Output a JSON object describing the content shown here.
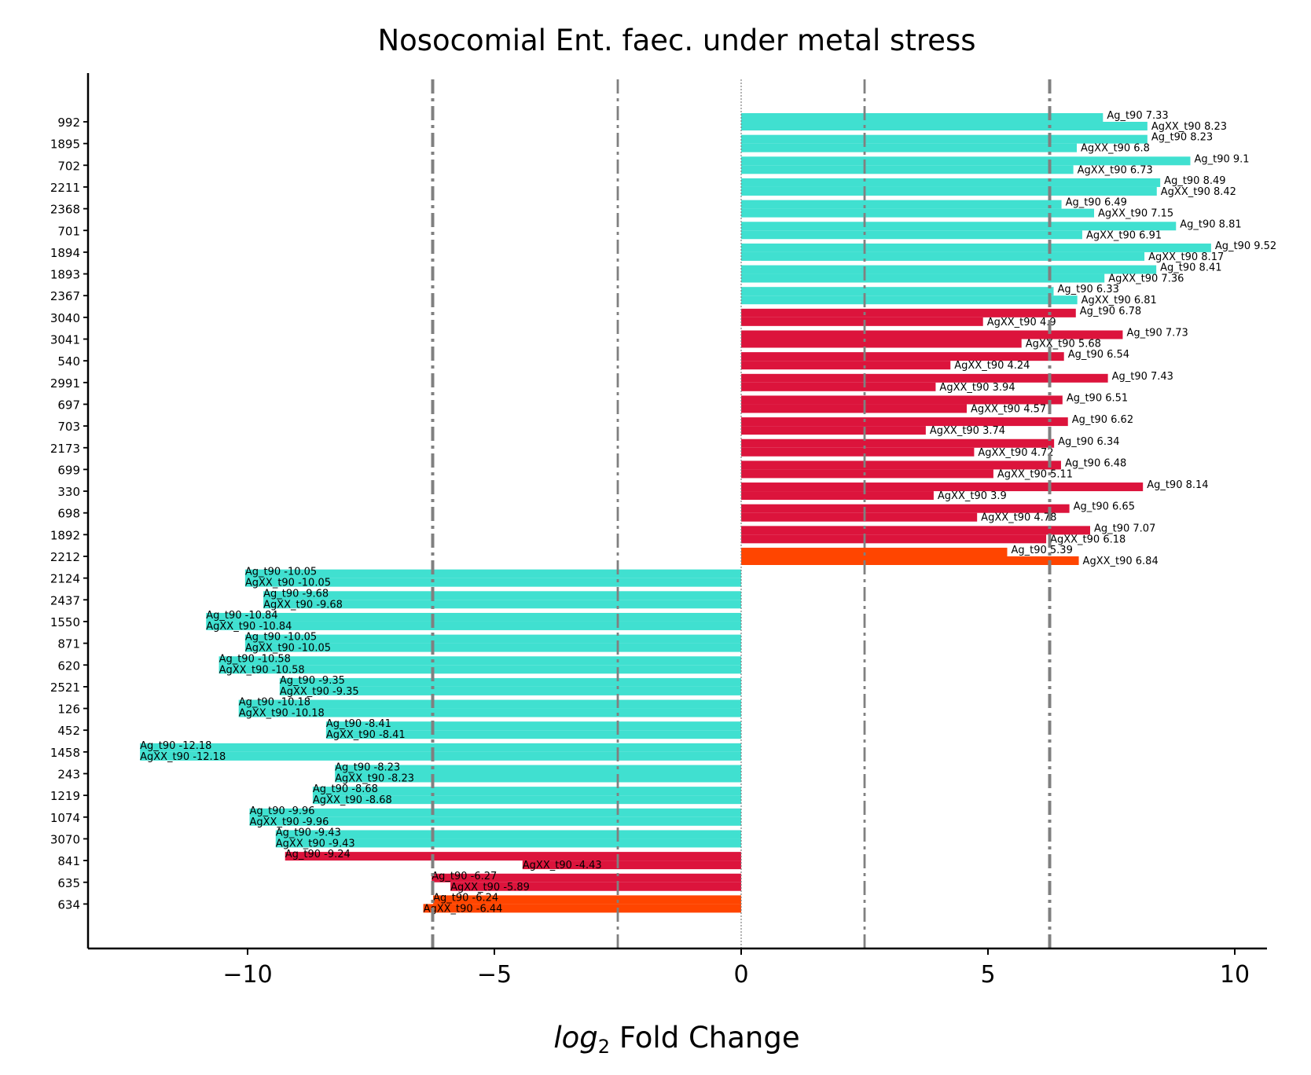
{
  "chart_data": {
    "type": "bar",
    "title": "Nosocomial Ent. faec. under metal stress",
    "xlabel_italic": "log",
    "xlabel_sub": "2",
    "xlabel_rest": " Fold Change",
    "ylabel": "",
    "xlim": [
      -13.3,
      10.6
    ],
    "xticks": [
      {
        "value": -10,
        "label": "−10"
      },
      {
        "value": -5,
        "label": "−5"
      },
      {
        "value": 0,
        "label": "0"
      },
      {
        "value": 5,
        "label": "5"
      },
      {
        "value": 10,
        "label": "10"
      }
    ],
    "vlines": [
      {
        "x": -6.25,
        "style": "thick"
      },
      {
        "x": -2.5,
        "style": "thin"
      },
      {
        "x": 0,
        "style": "dotted"
      },
      {
        "x": 2.5,
        "style": "thin"
      },
      {
        "x": 6.25,
        "style": "thick"
      }
    ],
    "colors": {
      "turquoise": "#40E0D0",
      "crimson": "#DC143C",
      "orangered": "#FF4500",
      "line": "#808080"
    },
    "series_labels": [
      "Ag_t90",
      "AgXX_t90"
    ],
    "categories": [
      "992",
      "1895",
      "702",
      "2211",
      "2368",
      "701",
      "1894",
      "1893",
      "2367",
      "3040",
      "3041",
      "540",
      "2991",
      "697",
      "703",
      "2173",
      "699",
      "330",
      "698",
      "1892",
      "2212",
      "2124",
      "2437",
      "1550",
      "871",
      "620",
      "2521",
      "126",
      "452",
      "1458",
      "243",
      "1219",
      "1074",
      "3070",
      "841",
      "635",
      "634"
    ],
    "bar_colors": [
      "turquoise",
      "turquoise",
      "turquoise",
      "turquoise",
      "turquoise",
      "turquoise",
      "turquoise",
      "turquoise",
      "turquoise",
      "crimson",
      "crimson",
      "crimson",
      "crimson",
      "crimson",
      "crimson",
      "crimson",
      "crimson",
      "crimson",
      "crimson",
      "crimson",
      "orangered",
      "turquoise",
      "turquoise",
      "turquoise",
      "turquoise",
      "turquoise",
      "turquoise",
      "turquoise",
      "turquoise",
      "turquoise",
      "turquoise",
      "turquoise",
      "turquoise",
      "turquoise",
      "crimson",
      "crimson",
      "orangered"
    ],
    "series": [
      {
        "name": "Ag_t90",
        "values": [
          7.33,
          8.23,
          9.1,
          8.49,
          6.49,
          8.81,
          9.52,
          8.41,
          6.33,
          6.78,
          7.73,
          6.54,
          7.43,
          6.51,
          6.62,
          6.34,
          6.48,
          8.14,
          6.65,
          7.07,
          5.39,
          -10.05,
          -9.68,
          -10.84,
          -10.05,
          -10.58,
          -9.35,
          -10.18,
          -8.41,
          -12.18,
          -8.23,
          -8.68,
          -9.96,
          -9.43,
          -9.24,
          -6.27,
          -6.24
        ]
      },
      {
        "name": "AgXX_t90",
        "values": [
          8.23,
          6.8,
          6.73,
          8.42,
          7.15,
          6.91,
          8.17,
          7.36,
          6.81,
          4.9,
          5.68,
          4.24,
          3.94,
          4.57,
          3.74,
          4.72,
          5.11,
          3.9,
          4.78,
          6.18,
          6.84,
          -10.05,
          -9.68,
          -10.84,
          -10.05,
          -10.58,
          -9.35,
          -10.18,
          -8.41,
          -12.18,
          -8.23,
          -8.68,
          -9.96,
          -9.43,
          -4.43,
          -5.89,
          -6.44
        ]
      }
    ]
  }
}
